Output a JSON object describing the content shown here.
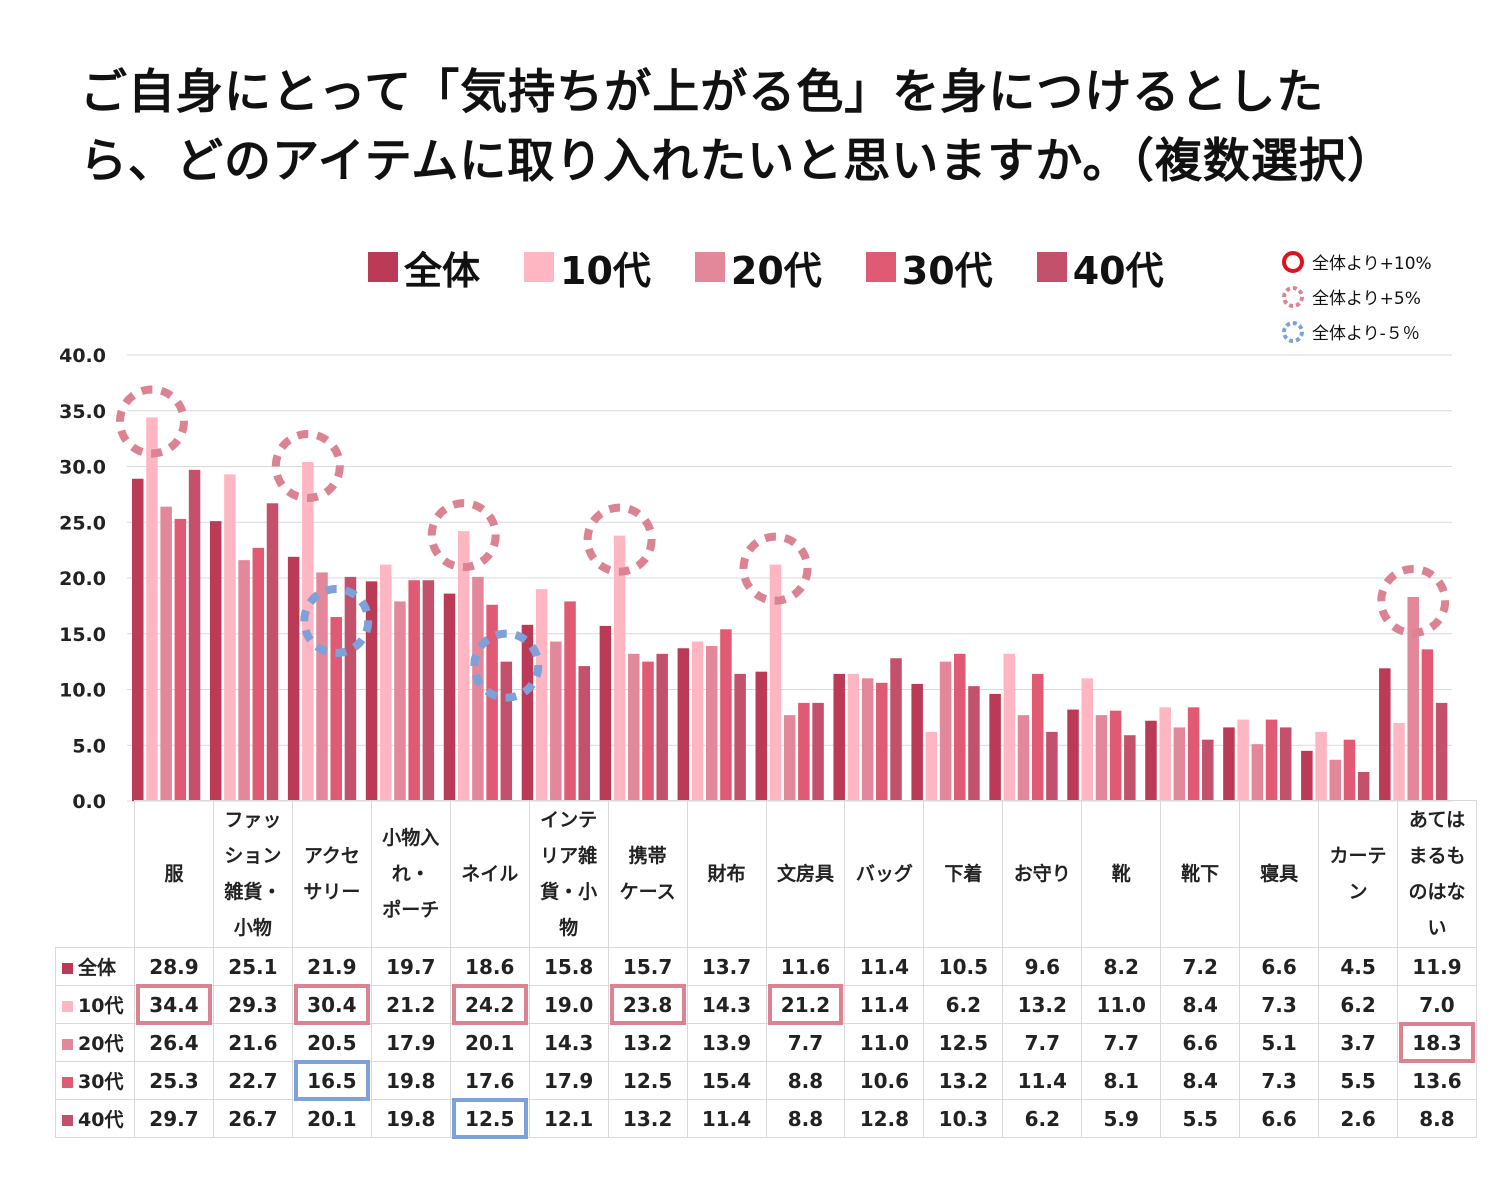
{
  "title": "ご自身にとって「気持ちが上がる色」を身につけるとしたら、どのアイテムに取り入れたいと思いますか。（複数選択）",
  "marker_legend": [
    {
      "label": "全体より+10%",
      "style": "solid",
      "color": "#e0101c"
    },
    {
      "label": "全体より+5%",
      "style": "dashed",
      "color": "#db8393"
    },
    {
      "label": "全体より-５％",
      "style": "dashed",
      "color": "#7da1d8"
    }
  ],
  "chart_data": {
    "type": "bar",
    "title": "ご自身にとって「気持ちが上がる色」を身につけるとしたら、どのアイテムに取り入れたいと思いますか。（複数選択）",
    "categories": [
      "服",
      "ファッション雑貨・小物",
      "アクセサリー",
      "小物入れ・ポーチ",
      "ネイル",
      "インテリア雑貨・小物",
      "携帯ケース",
      "財布",
      "文房具",
      "バッグ",
      "下着",
      "お守り",
      "靴",
      "靴下",
      "寝具",
      "カーテン",
      "あてはまるものはない"
    ],
    "category_lines": [
      [
        "服"
      ],
      [
        "ファッ",
        "ション",
        "雑貨・",
        "小物"
      ],
      [
        "アクセ",
        "サリー"
      ],
      [
        "小物入",
        "れ・",
        "ポーチ"
      ],
      [
        "ネイル"
      ],
      [
        "インテ",
        "リア雑",
        "貨・小",
        "物"
      ],
      [
        "携帯",
        "ケース"
      ],
      [
        "財布"
      ],
      [
        "文房具"
      ],
      [
        "バッグ"
      ],
      [
        "下着"
      ],
      [
        "お守り"
      ],
      [
        "靴"
      ],
      [
        "靴下"
      ],
      [
        "寝具"
      ],
      [
        "カーテ",
        "ン"
      ],
      [
        "あては",
        "まるも",
        "のはな",
        "い"
      ]
    ],
    "series": [
      {
        "name": "全体",
        "color": "#bb3a55",
        "values": [
          28.9,
          25.1,
          21.9,
          19.7,
          18.6,
          15.8,
          15.7,
          13.7,
          11.6,
          11.4,
          10.5,
          9.6,
          8.2,
          7.2,
          6.6,
          4.5,
          11.9
        ]
      },
      {
        "name": "10代",
        "color": "#ffb6c3",
        "values": [
          34.4,
          29.3,
          30.4,
          21.2,
          24.2,
          19.0,
          23.8,
          14.3,
          21.2,
          11.4,
          6.2,
          13.2,
          11.0,
          8.4,
          7.3,
          6.2,
          7.0
        ]
      },
      {
        "name": "20代",
        "color": "#e3889a",
        "values": [
          26.4,
          21.6,
          20.5,
          17.9,
          20.1,
          14.3,
          13.2,
          13.9,
          7.7,
          11.0,
          12.5,
          7.7,
          7.7,
          6.6,
          5.1,
          3.7,
          18.3
        ]
      },
      {
        "name": "30代",
        "color": "#e05a74",
        "values": [
          25.3,
          22.7,
          16.5,
          19.8,
          17.6,
          17.9,
          12.5,
          15.4,
          8.8,
          10.6,
          13.2,
          11.4,
          8.1,
          8.4,
          7.3,
          5.5,
          13.6
        ]
      },
      {
        "name": "40代",
        "color": "#c4516b",
        "values": [
          29.7,
          26.7,
          20.1,
          19.8,
          12.5,
          12.1,
          13.2,
          11.4,
          8.8,
          12.8,
          10.3,
          6.2,
          5.9,
          5.5,
          6.6,
          2.6,
          8.8
        ]
      }
    ],
    "ylim": [
      0,
      40
    ],
    "yticks": [
      "0.0",
      "5.0",
      "10.0",
      "15.0",
      "20.0",
      "25.0",
      "30.0",
      "35.0",
      "40.0"
    ],
    "grid": true,
    "legend": "top",
    "highlights": [
      {
        "series": 1,
        "category": 0,
        "type": "plus5"
      },
      {
        "series": 1,
        "category": 2,
        "type": "plus5"
      },
      {
        "series": 1,
        "category": 4,
        "type": "plus5"
      },
      {
        "series": 1,
        "category": 6,
        "type": "plus5"
      },
      {
        "series": 1,
        "category": 8,
        "type": "plus5"
      },
      {
        "series": 2,
        "category": 16,
        "type": "plus5"
      },
      {
        "series": 3,
        "category": 2,
        "type": "minus5"
      },
      {
        "series": 4,
        "category": 4,
        "type": "minus5"
      }
    ]
  }
}
